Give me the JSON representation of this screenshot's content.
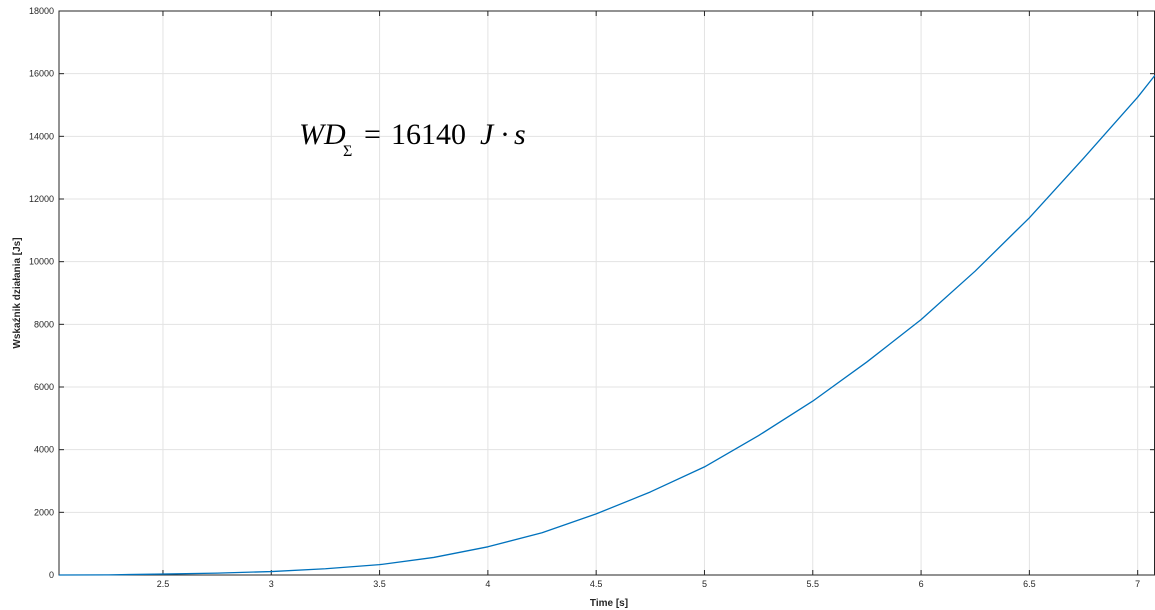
{
  "chart_data": {
    "type": "line",
    "title": "",
    "xlabel": "Time [s]",
    "ylabel": "Wskaźnik działania [Js]",
    "xlim": [
      2.02,
      7.08
    ],
    "ylim": [
      0,
      18000
    ],
    "xticks": [
      2.5,
      3,
      3.5,
      4,
      4.5,
      5,
      5.5,
      6,
      6.5,
      7
    ],
    "xtick_labels": [
      "2.5",
      "3",
      "3.5",
      "4",
      "4.5",
      "5",
      "5.5",
      "6",
      "6.5",
      "7"
    ],
    "yticks": [
      0,
      2000,
      4000,
      6000,
      8000,
      10000,
      12000,
      14000,
      16000,
      18000
    ],
    "ytick_labels": [
      "0",
      "2000",
      "4000",
      "6000",
      "8000",
      "10000",
      "12000",
      "14000",
      "16000",
      "18000"
    ],
    "grid": true,
    "series": [
      {
        "color": "#0072bd",
        "x": [
          2.02,
          2.25,
          2.5,
          2.75,
          3.0,
          3.25,
          3.5,
          3.75,
          4.0,
          4.25,
          4.5,
          4.75,
          5.0,
          5.25,
          5.5,
          5.75,
          6.0,
          6.25,
          6.5,
          6.75,
          7.0,
          7.08
        ],
        "y": [
          0,
          5,
          30,
          60,
          110,
          200,
          330,
          560,
          900,
          1350,
          1950,
          2650,
          3450,
          4450,
          5550,
          6800,
          8150,
          9700,
          11400,
          13300,
          15250,
          15950
        ]
      }
    ],
    "annotation": {
      "main": "WD",
      "subscript": "Σ",
      "equals": "=",
      "number": "16140",
      "unit_j": "J",
      "dot": "·",
      "unit_s": "s"
    }
  }
}
